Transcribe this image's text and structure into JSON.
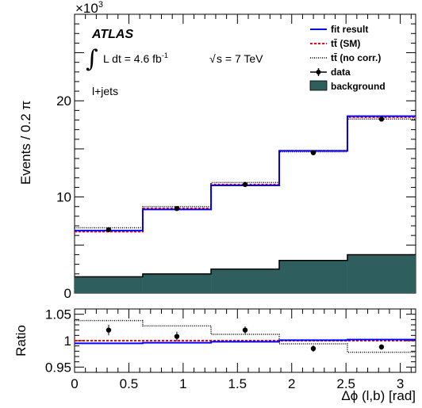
{
  "chart_data": [
    {
      "type": "histogram",
      "xlabel": "",
      "ylabel": "Events / 0.2 π",
      "y_multiplier": "×10",
      "y_multiplier_exp": "3",
      "x_bin_edges": [
        0,
        0.628,
        1.257,
        1.885,
        2.513,
        3.1416
      ],
      "xlim": [
        0,
        3.1416
      ],
      "ylim": [
        0,
        29
      ],
      "y_ticks": [
        0,
        10,
        20
      ],
      "annotations": {
        "experiment": "ATLAS",
        "lumi_label": "L dt = 4.6 fb",
        "lumi_exp": "-1",
        "sqrt_s": "s = 7 TeV",
        "channel": "l+jets"
      },
      "legend_position": "top-right",
      "series": [
        {
          "name": "fit result",
          "style": "step",
          "color": "#0000ff",
          "values": [
            6.5,
            8.7,
            11.2,
            14.8,
            18.4
          ]
        },
        {
          "name": "tt̄ (SM)",
          "style": "step-dashed",
          "color": "#ff0000",
          "values": [
            6.4,
            8.8,
            11.3,
            14.8,
            18.3
          ]
        },
        {
          "name": "tt̄ (no corr.)",
          "style": "step-dotted",
          "color": "#000000",
          "values": [
            6.8,
            9.0,
            11.5,
            14.7,
            18.1
          ]
        },
        {
          "name": "data",
          "style": "points",
          "color": "#000000",
          "x": [
            0.314,
            0.942,
            1.571,
            2.199,
            2.827
          ],
          "values": [
            6.6,
            8.8,
            11.3,
            14.6,
            18.1
          ],
          "errors": [
            0.08,
            0.09,
            0.1,
            0.12,
            0.13
          ]
        },
        {
          "name": "background",
          "style": "filled",
          "color": "#2e5e5e",
          "values": [
            1.7,
            2.0,
            2.5,
            3.4,
            4.0
          ]
        }
      ]
    },
    {
      "type": "histogram",
      "xlabel": "Δϕ (l,b) [rad]",
      "ylabel": "Ratio",
      "x_bin_edges": [
        0,
        0.628,
        1.257,
        1.885,
        2.513,
        3.1416
      ],
      "xlim": [
        0,
        3.1416
      ],
      "ylim": [
        0.94,
        1.06
      ],
      "y_ticks": [
        "0.95",
        "1",
        "1.05"
      ],
      "x_ticks": [
        "0",
        "0.5",
        "1",
        "1.5",
        "2",
        "2.5",
        "3"
      ],
      "series": [
        {
          "name": "fit result",
          "style": "step",
          "color": "#0000ff",
          "values": [
            0.995,
            0.996,
            0.998,
            1.001,
            1.002
          ]
        },
        {
          "name": "tt̄ (SM)",
          "style": "step-dashed",
          "color": "#ff0000",
          "values": [
            1.0,
            1.0,
            1.0,
            1.0,
            1.0
          ]
        },
        {
          "name": "tt̄ (no corr.)",
          "style": "step-dotted",
          "color": "#000000",
          "values": [
            1.038,
            1.028,
            1.012,
            0.994,
            0.978
          ]
        },
        {
          "name": "data",
          "style": "points",
          "color": "#000000",
          "x": [
            0.314,
            0.942,
            1.571,
            2.199,
            2.827
          ],
          "values": [
            1.02,
            1.008,
            1.02,
            0.985,
            0.988
          ],
          "errors": [
            0.01,
            0.009,
            0.007,
            0.006,
            0.005
          ]
        }
      ]
    }
  ]
}
